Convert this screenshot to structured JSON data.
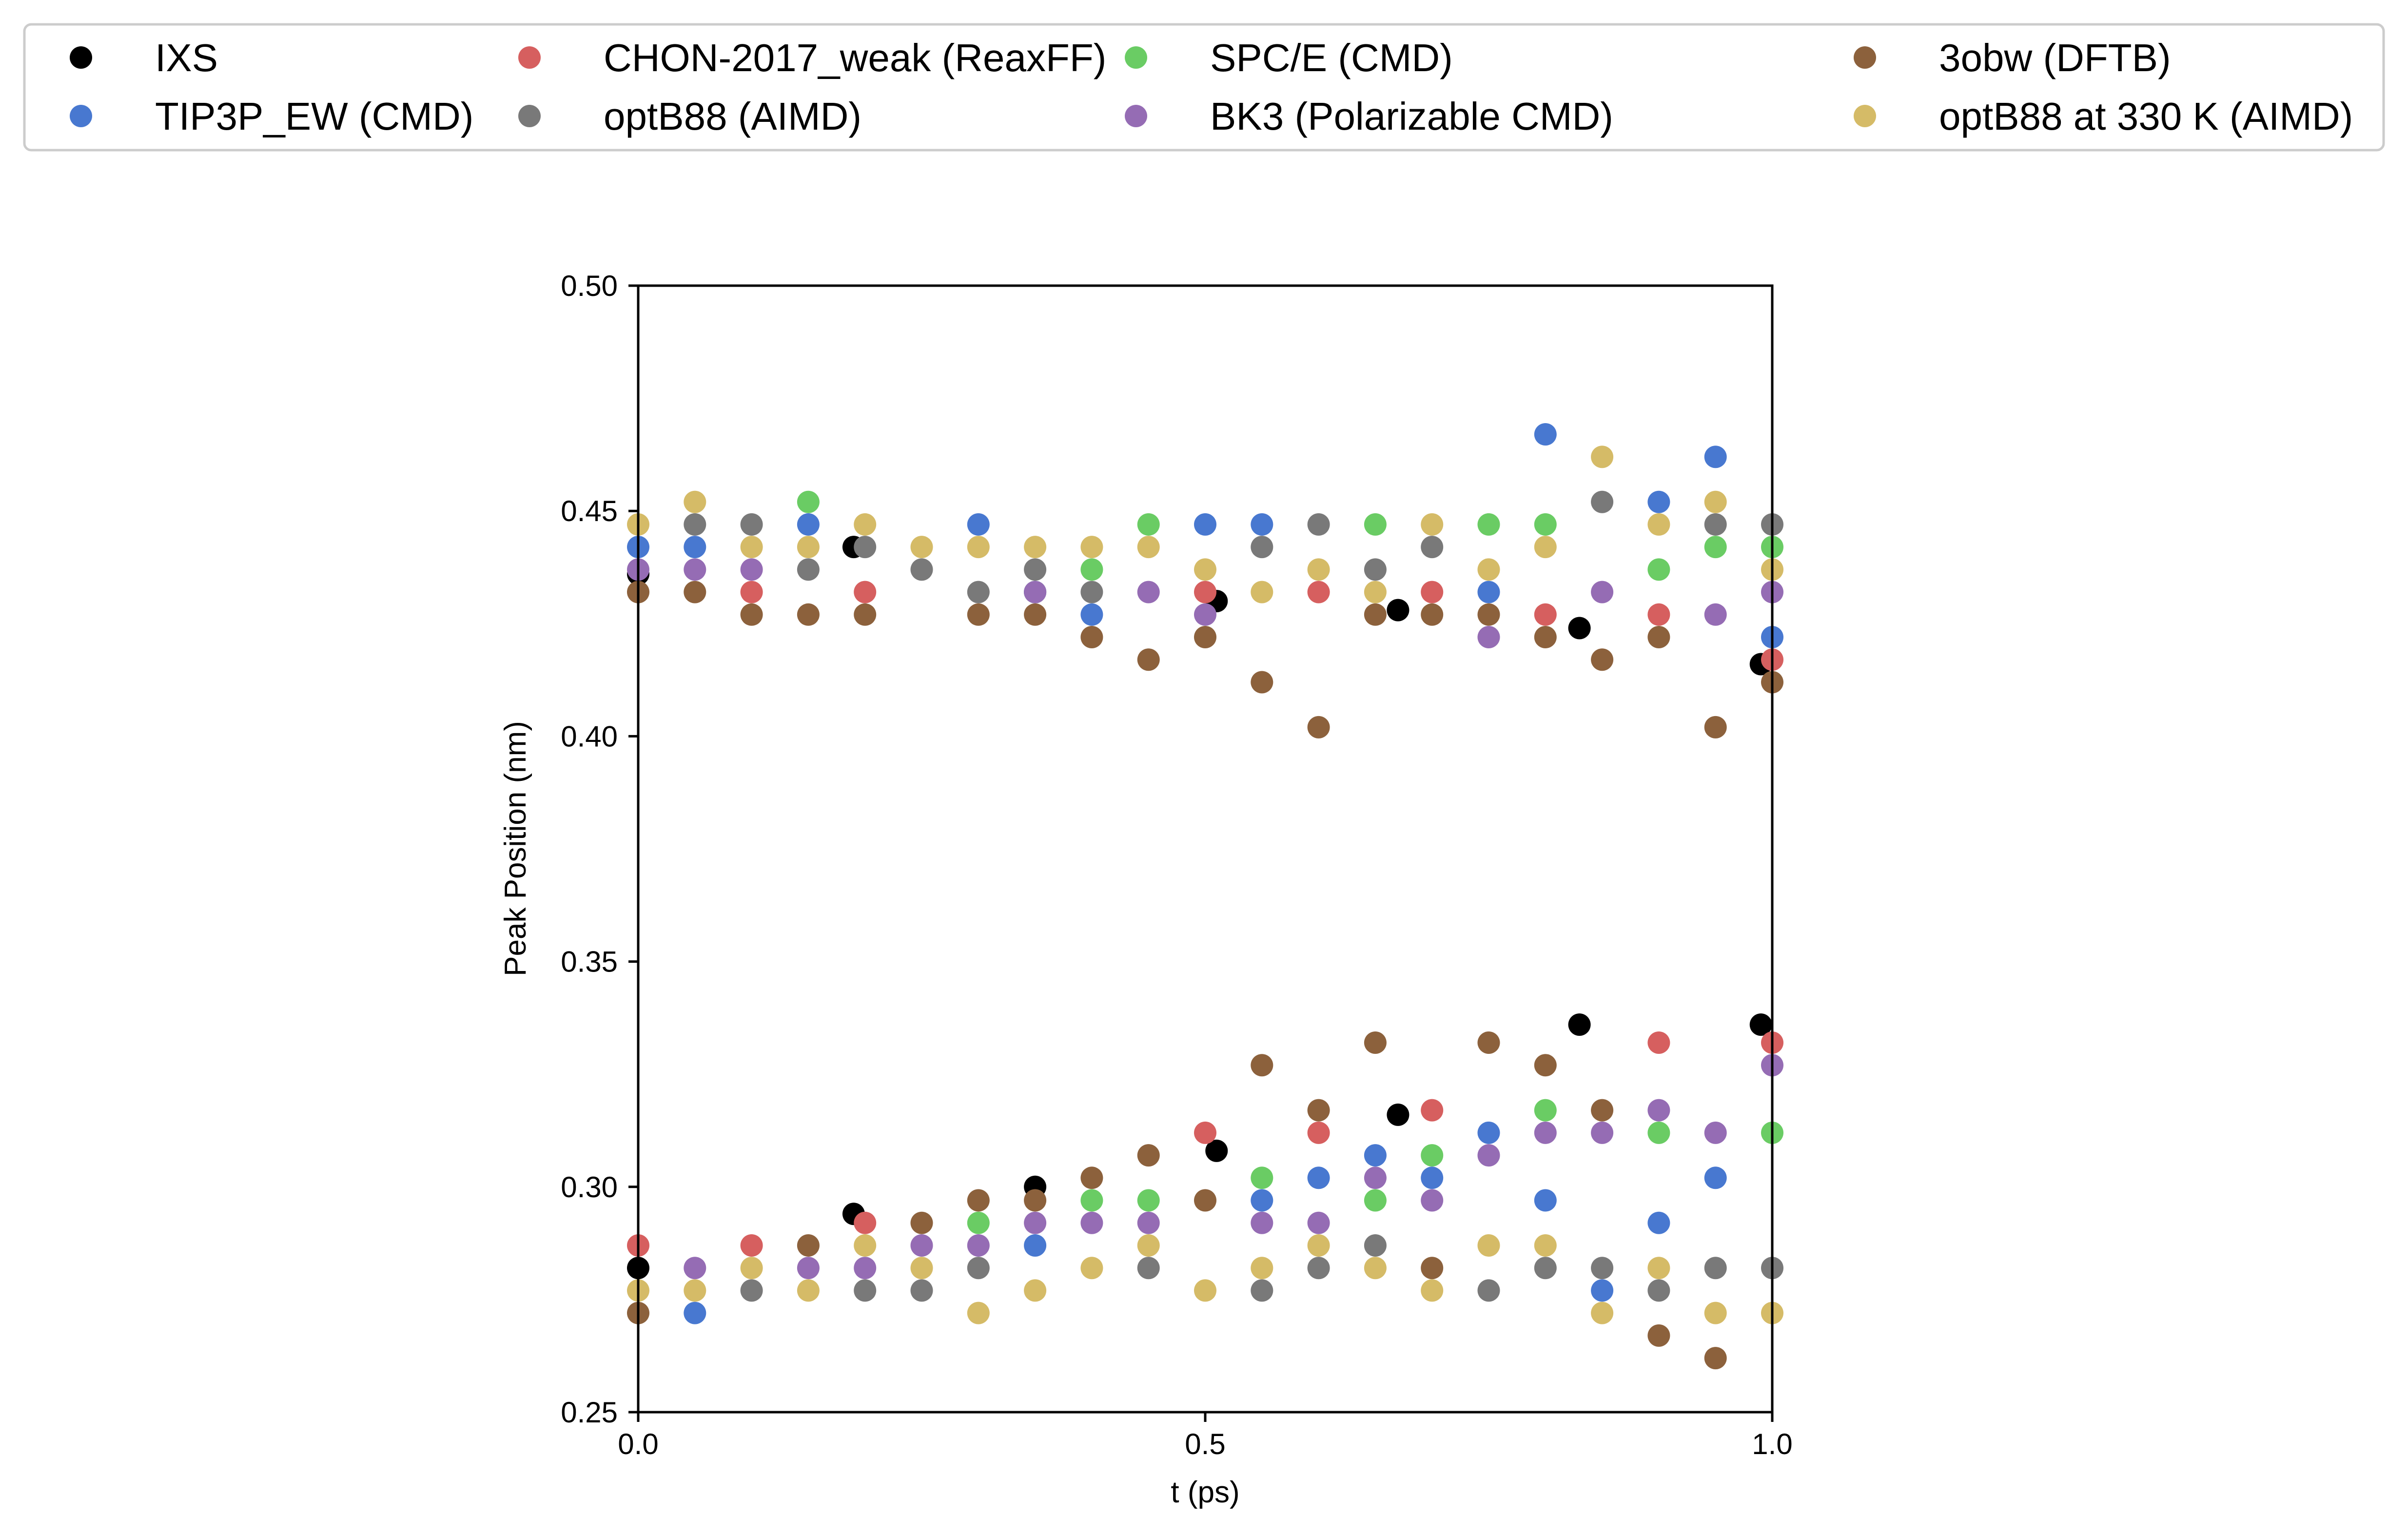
{
  "chart_data": {
    "type": "scatter",
    "title": "",
    "xlabel": "t (ps)",
    "ylabel": "Peak Position (nm)",
    "xlim": [
      0.0,
      1.0
    ],
    "ylim": [
      0.25,
      0.5
    ],
    "xticks": [
      "0.0",
      "0.5",
      "1.0"
    ],
    "yticks": [
      "0.25",
      "0.30",
      "0.35",
      "0.40",
      "0.45",
      "0.50"
    ],
    "grid": false,
    "legend_position": "top",
    "series": [
      {
        "name": "IXS",
        "color": "#000000",
        "points": [
          [
            0.0,
            0.436
          ],
          [
            0.19,
            0.442
          ],
          [
            0.35,
            0.432
          ],
          [
            0.51,
            0.43
          ],
          [
            0.67,
            0.428
          ],
          [
            0.83,
            0.424
          ],
          [
            0.99,
            0.416
          ],
          [
            0.0,
            0.282
          ],
          [
            0.19,
            0.294
          ],
          [
            0.35,
            0.3
          ],
          [
            0.51,
            0.308
          ],
          [
            0.67,
            0.316
          ],
          [
            0.83,
            0.336
          ],
          [
            0.99,
            0.336
          ]
        ]
      },
      {
        "name": "SPC/E (CMD)",
        "color": "#6acc64",
        "points": [
          [
            0.15,
            0.452
          ],
          [
            0.4,
            0.437
          ],
          [
            0.45,
            0.447
          ],
          [
            0.65,
            0.447
          ],
          [
            0.75,
            0.447
          ],
          [
            0.8,
            0.447
          ],
          [
            0.9,
            0.437
          ],
          [
            0.95,
            0.442
          ],
          [
            1.0,
            0.442
          ],
          [
            0.3,
            0.292
          ],
          [
            0.4,
            0.297
          ],
          [
            0.45,
            0.297
          ],
          [
            0.55,
            0.302
          ],
          [
            0.65,
            0.297
          ],
          [
            0.7,
            0.307
          ],
          [
            0.8,
            0.317
          ],
          [
            0.9,
            0.312
          ],
          [
            1.0,
            0.312
          ]
        ]
      },
      {
        "name": "TIP3P_EW (CMD)",
        "color": "#4878d0",
        "points": [
          [
            0.0,
            0.442
          ],
          [
            0.05,
            0.442
          ],
          [
            0.15,
            0.447
          ],
          [
            0.3,
            0.447
          ],
          [
            0.35,
            0.432
          ],
          [
            0.4,
            0.427
          ],
          [
            0.5,
            0.447
          ],
          [
            0.55,
            0.447
          ],
          [
            0.75,
            0.432
          ],
          [
            0.8,
            0.467
          ],
          [
            0.9,
            0.452
          ],
          [
            0.95,
            0.462
          ],
          [
            1.0,
            0.422
          ],
          [
            0.05,
            0.272
          ],
          [
            0.35,
            0.287
          ],
          [
            0.55,
            0.297
          ],
          [
            0.6,
            0.302
          ],
          [
            0.65,
            0.307
          ],
          [
            0.7,
            0.302
          ],
          [
            0.75,
            0.312
          ],
          [
            0.8,
            0.297
          ],
          [
            0.85,
            0.277
          ],
          [
            0.9,
            0.292
          ],
          [
            0.95,
            0.302
          ]
        ]
      },
      {
        "name": "BK3 (Polarizable CMD)",
        "color": "#956cb4",
        "points": [
          [
            0.0,
            0.437
          ],
          [
            0.05,
            0.437
          ],
          [
            0.1,
            0.437
          ],
          [
            0.35,
            0.432
          ],
          [
            0.45,
            0.432
          ],
          [
            0.5,
            0.427
          ],
          [
            0.75,
            0.422
          ],
          [
            0.85,
            0.432
          ],
          [
            0.95,
            0.427
          ],
          [
            1.0,
            0.432
          ],
          [
            0.05,
            0.282
          ],
          [
            0.15,
            0.282
          ],
          [
            0.2,
            0.282
          ],
          [
            0.25,
            0.287
          ],
          [
            0.3,
            0.287
          ],
          [
            0.35,
            0.292
          ],
          [
            0.4,
            0.292
          ],
          [
            0.45,
            0.292
          ],
          [
            0.55,
            0.292
          ],
          [
            0.6,
            0.292
          ],
          [
            0.65,
            0.302
          ],
          [
            0.7,
            0.297
          ],
          [
            0.75,
            0.307
          ],
          [
            0.8,
            0.312
          ],
          [
            0.85,
            0.312
          ],
          [
            0.9,
            0.317
          ],
          [
            0.95,
            0.312
          ],
          [
            1.0,
            0.327
          ]
        ]
      },
      {
        "name": "CHON-2017_weak (ReaxFF)",
        "color": "#d65f5f",
        "points": [
          [
            0.1,
            0.432
          ],
          [
            0.2,
            0.432
          ],
          [
            0.5,
            0.432
          ],
          [
            0.6,
            0.432
          ],
          [
            0.7,
            0.432
          ],
          [
            0.8,
            0.427
          ],
          [
            0.9,
            0.427
          ],
          [
            1.0,
            0.417
          ],
          [
            0.0,
            0.287
          ],
          [
            0.1,
            0.287
          ],
          [
            0.2,
            0.292
          ],
          [
            0.5,
            0.312
          ],
          [
            0.6,
            0.312
          ],
          [
            0.7,
            0.317
          ],
          [
            0.9,
            0.332
          ],
          [
            1.0,
            0.332
          ]
        ]
      },
      {
        "name": "3obw (DFTB)",
        "color": "#8c613c",
        "points": [
          [
            0.0,
            0.432
          ],
          [
            0.05,
            0.432
          ],
          [
            0.1,
            0.427
          ],
          [
            0.15,
            0.427
          ],
          [
            0.2,
            0.427
          ],
          [
            0.3,
            0.427
          ],
          [
            0.35,
            0.427
          ],
          [
            0.4,
            0.422
          ],
          [
            0.45,
            0.417
          ],
          [
            0.5,
            0.422
          ],
          [
            0.55,
            0.412
          ],
          [
            0.6,
            0.402
          ],
          [
            0.65,
            0.427
          ],
          [
            0.7,
            0.427
          ],
          [
            0.75,
            0.427
          ],
          [
            0.8,
            0.422
          ],
          [
            0.85,
            0.417
          ],
          [
            0.9,
            0.422
          ],
          [
            0.95,
            0.402
          ],
          [
            1.0,
            0.412
          ],
          [
            0.0,
            0.272
          ],
          [
            0.15,
            0.287
          ],
          [
            0.25,
            0.292
          ],
          [
            0.3,
            0.297
          ],
          [
            0.35,
            0.297
          ],
          [
            0.4,
            0.302
          ],
          [
            0.45,
            0.307
          ],
          [
            0.5,
            0.297
          ],
          [
            0.55,
            0.327
          ],
          [
            0.6,
            0.317
          ],
          [
            0.65,
            0.332
          ],
          [
            0.7,
            0.282
          ],
          [
            0.75,
            0.332
          ],
          [
            0.8,
            0.327
          ],
          [
            0.85,
            0.317
          ],
          [
            0.9,
            0.267
          ],
          [
            0.95,
            0.262
          ]
        ]
      },
      {
        "name": "optB88 (AIMD)",
        "color": "#797979",
        "points": [
          [
            0.05,
            0.447
          ],
          [
            0.1,
            0.447
          ],
          [
            0.15,
            0.437
          ],
          [
            0.2,
            0.442
          ],
          [
            0.25,
            0.437
          ],
          [
            0.3,
            0.432
          ],
          [
            0.35,
            0.437
          ],
          [
            0.4,
            0.432
          ],
          [
            0.55,
            0.442
          ],
          [
            0.6,
            0.447
          ],
          [
            0.65,
            0.437
          ],
          [
            0.7,
            0.442
          ],
          [
            0.85,
            0.452
          ],
          [
            0.95,
            0.447
          ],
          [
            1.0,
            0.447
          ],
          [
            0.1,
            0.277
          ],
          [
            0.2,
            0.277
          ],
          [
            0.25,
            0.277
          ],
          [
            0.3,
            0.282
          ],
          [
            0.45,
            0.282
          ],
          [
            0.55,
            0.277
          ],
          [
            0.6,
            0.282
          ],
          [
            0.65,
            0.287
          ],
          [
            0.75,
            0.277
          ],
          [
            0.8,
            0.282
          ],
          [
            0.85,
            0.282
          ],
          [
            0.9,
            0.277
          ],
          [
            0.95,
            0.282
          ],
          [
            1.0,
            0.282
          ]
        ]
      },
      {
        "name": "optB88 at 330 K (AIMD)",
        "color": "#d5bb67",
        "points": [
          [
            0.0,
            0.447
          ],
          [
            0.05,
            0.452
          ],
          [
            0.1,
            0.442
          ],
          [
            0.15,
            0.442
          ],
          [
            0.2,
            0.447
          ],
          [
            0.25,
            0.442
          ],
          [
            0.3,
            0.442
          ],
          [
            0.35,
            0.442
          ],
          [
            0.4,
            0.442
          ],
          [
            0.45,
            0.442
          ],
          [
            0.5,
            0.437
          ],
          [
            0.55,
            0.432
          ],
          [
            0.6,
            0.437
          ],
          [
            0.65,
            0.432
          ],
          [
            0.7,
            0.447
          ],
          [
            0.75,
            0.437
          ],
          [
            0.8,
            0.442
          ],
          [
            0.85,
            0.462
          ],
          [
            0.9,
            0.447
          ],
          [
            0.95,
            0.452
          ],
          [
            1.0,
            0.437
          ],
          [
            0.0,
            0.277
          ],
          [
            0.05,
            0.277
          ],
          [
            0.1,
            0.282
          ],
          [
            0.15,
            0.277
          ],
          [
            0.2,
            0.287
          ],
          [
            0.25,
            0.282
          ],
          [
            0.3,
            0.272
          ],
          [
            0.35,
            0.277
          ],
          [
            0.4,
            0.282
          ],
          [
            0.45,
            0.287
          ],
          [
            0.5,
            0.277
          ],
          [
            0.55,
            0.282
          ],
          [
            0.6,
            0.287
          ],
          [
            0.65,
            0.282
          ],
          [
            0.7,
            0.277
          ],
          [
            0.75,
            0.287
          ],
          [
            0.8,
            0.287
          ],
          [
            0.85,
            0.272
          ],
          [
            0.9,
            0.282
          ],
          [
            0.95,
            0.272
          ],
          [
            1.0,
            0.272
          ]
        ]
      }
    ],
    "legend_order": [
      0,
      2,
      4,
      6,
      1,
      3,
      5,
      7
    ]
  }
}
